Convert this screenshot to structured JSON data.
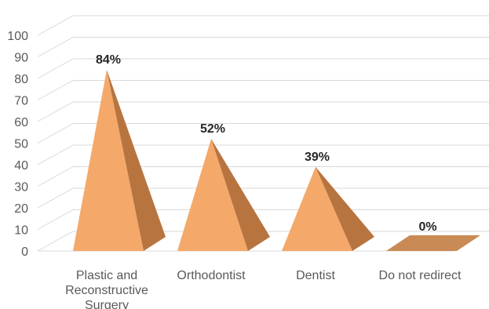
{
  "chart_data": {
    "type": "bar",
    "shape": "pyramid-3d",
    "categories": [
      [
        "Plastic and",
        "Reconstructive",
        "Surgery"
      ],
      [
        "Orthodontist"
      ],
      [
        "Dentist"
      ],
      [
        "Do not redirect"
      ]
    ],
    "values": [
      84,
      52,
      39,
      0
    ],
    "data_labels": [
      "84%",
      "52%",
      "39%",
      "0%"
    ],
    "yticks": [
      "0",
      "10",
      "20",
      "30",
      "40",
      "50",
      "60",
      "70",
      "80",
      "90",
      "100"
    ],
    "ylim": [
      0,
      100
    ],
    "grid": true,
    "colors": {
      "front": "#F4A96A",
      "side": "#B8743F",
      "top": "#C98A55",
      "grid": "#D9D9D9",
      "text": "#595959",
      "label": "#262626"
    }
  }
}
